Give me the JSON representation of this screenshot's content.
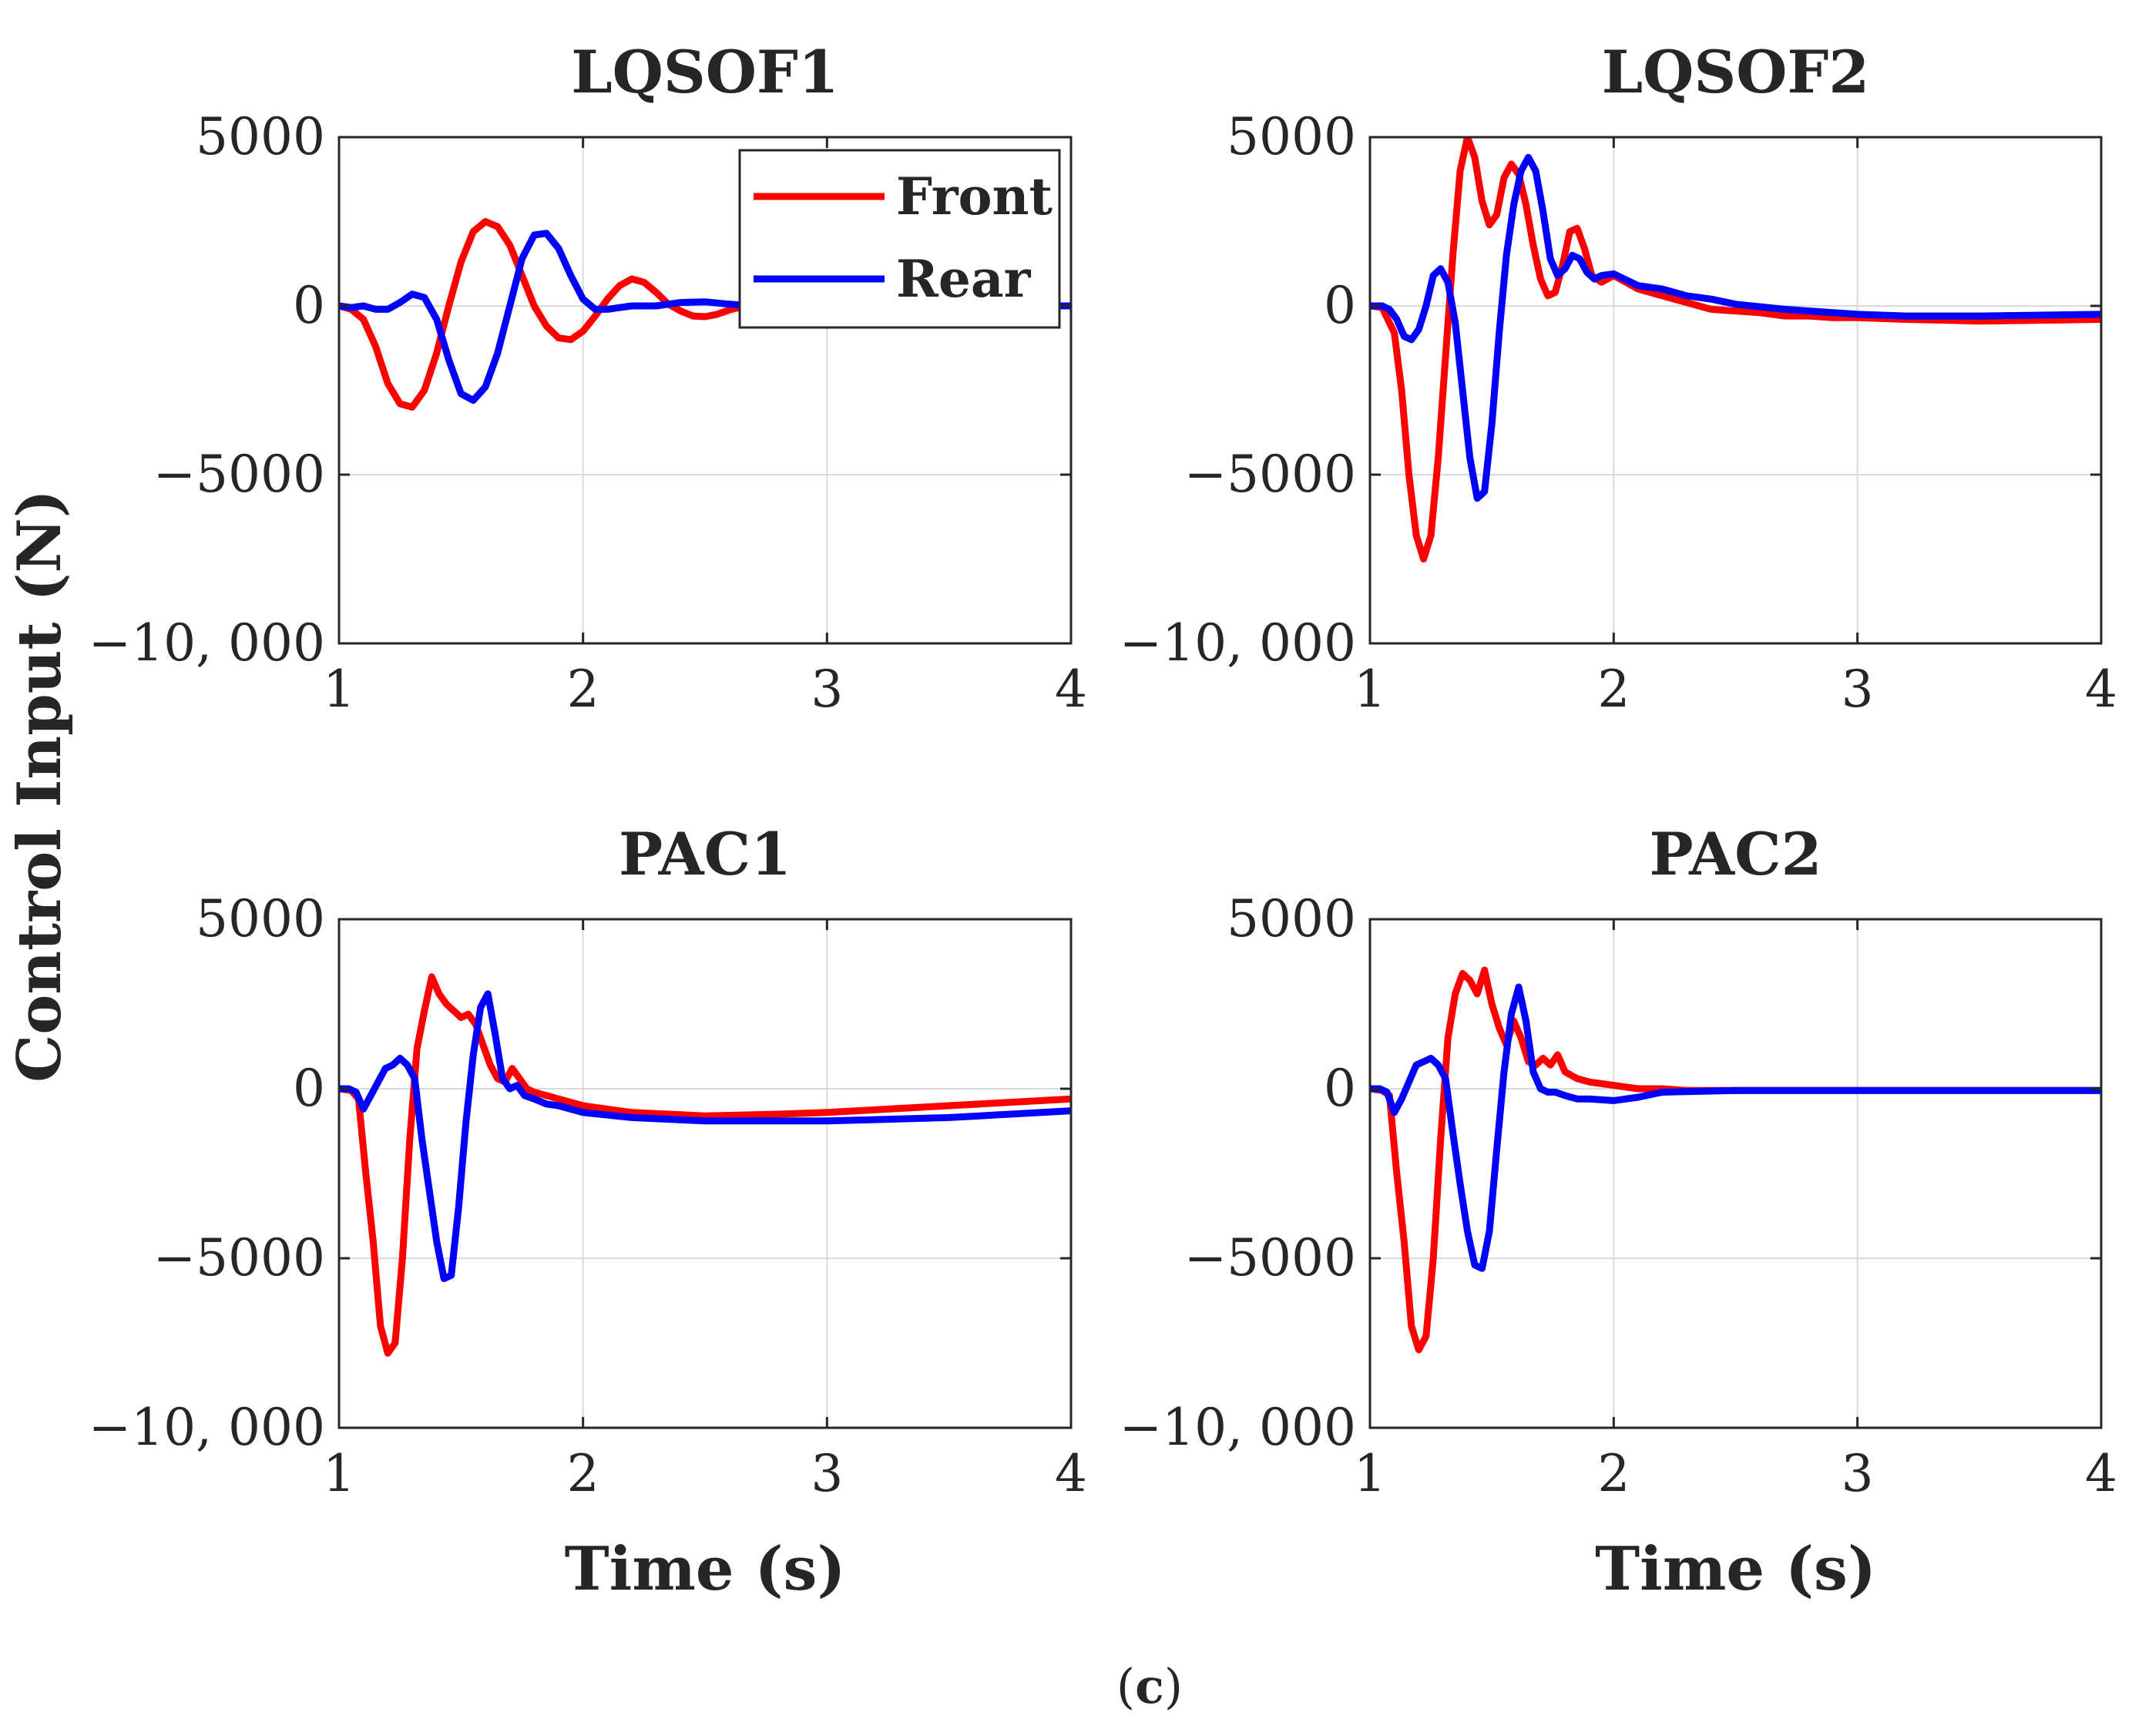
{
  "figure": {
    "ylabel": "Control Input (N)",
    "xlabel": "Time (s)",
    "caption": "(c)",
    "caption_letter": "c",
    "caption_open": "(",
    "caption_close": ")",
    "legend": [
      "Front",
      "Rear"
    ],
    "colors": {
      "Front": "#ff0000",
      "Rear": "#0000ff",
      "axis": "#262626",
      "grid": "#d9d9d9"
    },
    "xticks": [
      "1",
      "2",
      "3",
      "4"
    ],
    "yticks": [
      "5000",
      "0",
      "−5000",
      "−10, 000"
    ]
  },
  "chart_data": [
    {
      "type": "line",
      "title": "LQSOF1",
      "xlabel": "",
      "ylabel": "Control Input (N)",
      "xlim": [
        1,
        4
      ],
      "ylim": [
        -10000,
        5000
      ],
      "grid": true,
      "legend": "top-right",
      "series": [
        {
          "name": "Front",
          "x": [
            1.0,
            1.05,
            1.1,
            1.15,
            1.2,
            1.25,
            1.3,
            1.35,
            1.4,
            1.45,
            1.5,
            1.55,
            1.6,
            1.65,
            1.7,
            1.75,
            1.8,
            1.85,
            1.9,
            1.95,
            2.0,
            2.05,
            2.1,
            2.15,
            2.2,
            2.25,
            2.3,
            2.35,
            2.4,
            2.45,
            2.5,
            2.55,
            2.6,
            2.65,
            2.7,
            2.8,
            2.9,
            3.0,
            3.2,
            3.5,
            4.0
          ],
          "y": [
            0,
            -100,
            -400,
            -1200,
            -2300,
            -2900,
            -3000,
            -2500,
            -1400,
            0,
            1300,
            2200,
            2500,
            2350,
            1800,
            900,
            0,
            -600,
            -950,
            -1000,
            -750,
            -300,
            200,
            600,
            800,
            700,
            400,
            50,
            -150,
            -300,
            -320,
            -250,
            -120,
            -30,
            0,
            0,
            0,
            0,
            0,
            0,
            0
          ]
        },
        {
          "name": "Rear",
          "x": [
            1.0,
            1.05,
            1.1,
            1.15,
            1.2,
            1.25,
            1.3,
            1.35,
            1.4,
            1.45,
            1.5,
            1.55,
            1.6,
            1.65,
            1.7,
            1.75,
            1.8,
            1.85,
            1.9,
            1.95,
            2.0,
            2.05,
            2.1,
            2.15,
            2.2,
            2.3,
            2.4,
            2.5,
            2.6,
            2.7,
            2.8,
            3.0,
            3.5,
            4.0
          ],
          "y": [
            0,
            -50,
            0,
            -100,
            -100,
            100,
            350,
            250,
            -400,
            -1600,
            -2600,
            -2800,
            -2400,
            -1400,
            0,
            1400,
            2100,
            2150,
            1700,
            900,
            200,
            -100,
            -100,
            -50,
            0,
            0,
            100,
            120,
            50,
            0,
            0,
            0,
            0,
            0
          ]
        }
      ]
    },
    {
      "type": "line",
      "title": "LQSOF2",
      "xlabel": "",
      "ylabel": "",
      "xlim": [
        1,
        4
      ],
      "ylim": [
        -10000,
        5000
      ],
      "grid": true,
      "series": [
        {
          "name": "Front",
          "x": [
            1.0,
            1.05,
            1.1,
            1.13,
            1.16,
            1.19,
            1.22,
            1.25,
            1.28,
            1.31,
            1.34,
            1.37,
            1.4,
            1.43,
            1.46,
            1.49,
            1.52,
            1.55,
            1.58,
            1.61,
            1.64,
            1.67,
            1.7,
            1.73,
            1.76,
            1.79,
            1.82,
            1.85,
            1.88,
            1.91,
            1.95,
            2.0,
            2.1,
            2.2,
            2.3,
            2.4,
            2.5,
            2.6,
            2.7,
            2.8,
            2.9,
            3.0,
            3.2,
            3.5,
            4.0
          ],
          "y": [
            0,
            -50,
            -800,
            -2500,
            -5000,
            -6800,
            -7500,
            -6800,
            -4500,
            -1500,
            1500,
            4000,
            5000,
            4400,
            3100,
            2400,
            2700,
            3800,
            4200,
            3900,
            3000,
            1800,
            800,
            300,
            400,
            1200,
            2200,
            2300,
            1700,
            900,
            700,
            900,
            500,
            300,
            100,
            -100,
            -150,
            -200,
            -300,
            -300,
            -350,
            -350,
            -400,
            -450,
            -400
          ]
        },
        {
          "name": "Rear",
          "x": [
            1.0,
            1.05,
            1.08,
            1.11,
            1.14,
            1.17,
            1.2,
            1.23,
            1.26,
            1.29,
            1.32,
            1.35,
            1.38,
            1.41,
            1.44,
            1.47,
            1.5,
            1.53,
            1.56,
            1.59,
            1.62,
            1.65,
            1.68,
            1.71,
            1.74,
            1.77,
            1.8,
            1.83,
            1.86,
            1.89,
            1.92,
            1.95,
            2.0,
            2.1,
            2.2,
            2.3,
            2.4,
            2.5,
            2.7,
            2.9,
            3.0,
            3.2,
            3.5,
            4.0
          ],
          "y": [
            0,
            0,
            -100,
            -400,
            -900,
            -1000,
            -700,
            0,
            900,
            1100,
            700,
            -500,
            -2500,
            -4500,
            -5700,
            -5500,
            -3500,
            -800,
            1500,
            3000,
            4000,
            4400,
            4000,
            2800,
            1400,
            900,
            1100,
            1500,
            1400,
            1000,
            800,
            900,
            950,
            600,
            500,
            300,
            200,
            50,
            -100,
            -200,
            -250,
            -300,
            -300,
            -250
          ]
        }
      ]
    },
    {
      "type": "line",
      "title": "PAC1",
      "xlabel": "Time (s)",
      "ylabel": "Control Input (N)",
      "xlim": [
        1,
        4
      ],
      "ylim": [
        -10000,
        5000
      ],
      "grid": true,
      "series": [
        {
          "name": "Front",
          "x": [
            1.0,
            1.05,
            1.08,
            1.11,
            1.14,
            1.17,
            1.2,
            1.23,
            1.26,
            1.29,
            1.32,
            1.35,
            1.38,
            1.41,
            1.44,
            1.47,
            1.5,
            1.53,
            1.56,
            1.59,
            1.62,
            1.65,
            1.68,
            1.71,
            1.74,
            1.77,
            1.8,
            1.85,
            1.9,
            2.0,
            2.2,
            2.5,
            2.8,
            3.0,
            3.5,
            4.0
          ],
          "y": [
            0,
            -50,
            -300,
            -2500,
            -4500,
            -7000,
            -7800,
            -7500,
            -5000,
            -1500,
            1200,
            2300,
            3300,
            2800,
            2500,
            2300,
            2100,
            2200,
            1900,
            1300,
            700,
            300,
            200,
            600,
            300,
            0,
            -100,
            -200,
            -300,
            -500,
            -700,
            -800,
            -750,
            -700,
            -500,
            -300
          ]
        },
        {
          "name": "Rear",
          "x": [
            1.0,
            1.04,
            1.07,
            1.1,
            1.13,
            1.16,
            1.19,
            1.22,
            1.25,
            1.28,
            1.31,
            1.34,
            1.37,
            1.4,
            1.43,
            1.46,
            1.49,
            1.52,
            1.55,
            1.58,
            1.61,
            1.64,
            1.67,
            1.7,
            1.73,
            1.76,
            1.8,
            1.85,
            1.9,
            2.0,
            2.2,
            2.5,
            2.8,
            3.0,
            3.5,
            4.0
          ],
          "y": [
            0,
            0,
            -100,
            -600,
            -200,
            200,
            600,
            700,
            900,
            700,
            300,
            -1500,
            -3000,
            -4500,
            -5600,
            -5500,
            -3500,
            -1000,
            1000,
            2400,
            2800,
            1600,
            300,
            0,
            100,
            -200,
            -300,
            -450,
            -500,
            -700,
            -850,
            -950,
            -950,
            -950,
            -850,
            -650
          ]
        }
      ]
    },
    {
      "type": "line",
      "title": "PAC2",
      "xlabel": "Time (s)",
      "ylabel": "",
      "xlim": [
        1,
        4
      ],
      "ylim": [
        -10000,
        5000
      ],
      "grid": true,
      "series": [
        {
          "name": "Front",
          "x": [
            1.0,
            1.05,
            1.08,
            1.11,
            1.14,
            1.17,
            1.2,
            1.23,
            1.26,
            1.29,
            1.32,
            1.35,
            1.38,
            1.41,
            1.44,
            1.47,
            1.5,
            1.53,
            1.56,
            1.59,
            1.62,
            1.65,
            1.68,
            1.71,
            1.74,
            1.77,
            1.8,
            1.85,
            1.9,
            2.0,
            2.1,
            2.2,
            2.3,
            2.5,
            3.0,
            3.5,
            4.0
          ],
          "y": [
            0,
            -50,
            -200,
            -2500,
            -4500,
            -7000,
            -7700,
            -7300,
            -5000,
            -1500,
            1500,
            2800,
            3400,
            3200,
            2800,
            3500,
            2500,
            1800,
            1300,
            2000,
            1500,
            800,
            700,
            900,
            700,
            1000,
            500,
            300,
            200,
            100,
            0,
            0,
            -50,
            -50,
            -50,
            -50,
            -50
          ]
        },
        {
          "name": "Rear",
          "x": [
            1.0,
            1.04,
            1.07,
            1.1,
            1.13,
            1.16,
            1.19,
            1.22,
            1.25,
            1.28,
            1.31,
            1.34,
            1.37,
            1.4,
            1.43,
            1.46,
            1.49,
            1.52,
            1.55,
            1.58,
            1.61,
            1.64,
            1.67,
            1.7,
            1.73,
            1.76,
            1.8,
            1.85,
            1.9,
            2.0,
            2.1,
            2.2,
            2.5,
            3.0,
            3.5,
            4.0
          ],
          "y": [
            0,
            0,
            -100,
            -700,
            -300,
            200,
            700,
            800,
            900,
            700,
            300,
            -1300,
            -2800,
            -4200,
            -5200,
            -5300,
            -4200,
            -1800,
            500,
            2200,
            3000,
            2000,
            500,
            0,
            -100,
            -100,
            -200,
            -300,
            -300,
            -350,
            -250,
            -100,
            -50,
            -50,
            -50,
            -50
          ]
        }
      ]
    }
  ]
}
